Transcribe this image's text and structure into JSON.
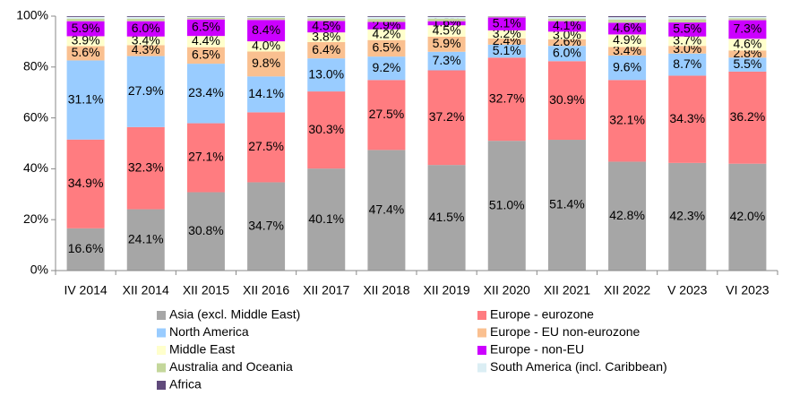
{
  "chart_data": {
    "type": "bar",
    "stacked": true,
    "categories": [
      "IV 2014",
      "XII 2014",
      "XII 2015",
      "XII 2016",
      "XII 2017",
      "XII 2018",
      "XII 2019",
      "XII 2020",
      "XII 2021",
      "XII 2022",
      "V 2023",
      "VI 2023"
    ],
    "ylim": [
      0,
      100
    ],
    "yticks": [
      {
        "value": 0,
        "label": "0%"
      },
      {
        "value": 20,
        "label": "20%"
      },
      {
        "value": 40,
        "label": "40%"
      },
      {
        "value": 60,
        "label": "60%"
      },
      {
        "value": 80,
        "label": "80%"
      },
      {
        "value": 100,
        "label": "100%"
      }
    ],
    "series": [
      {
        "name": "Asia (excl. Middle East)",
        "color": "#a6a6a6",
        "values": [
          16.6,
          24.1,
          30.8,
          34.7,
          40.1,
          47.4,
          41.5,
          51.0,
          51.4,
          42.8,
          42.3,
          42.0
        ],
        "value_labels": [
          "16.6%",
          "24.1%",
          "30.8%",
          "34.7%",
          "40.1%",
          "47.4%",
          "41.5%",
          "51.0%",
          "51.4%",
          "42.8%",
          "42.3%",
          "42.0%"
        ]
      },
      {
        "name": "Europe - eurozone",
        "color": "#ff7c80",
        "values": [
          34.9,
          32.3,
          27.1,
          27.5,
          30.3,
          27.5,
          37.2,
          32.7,
          30.9,
          32.1,
          34.3,
          36.2
        ],
        "value_labels": [
          "34.9%",
          "32.3%",
          "27.1%",
          "27.5%",
          "30.3%",
          "27.5%",
          "37.2%",
          "32.7%",
          "30.9%",
          "32.1%",
          "34.3%",
          "36.2%"
        ]
      },
      {
        "name": "North America",
        "color": "#99ccff",
        "values": [
          31.1,
          27.9,
          23.4,
          14.1,
          13.0,
          9.2,
          7.3,
          5.1,
          6.0,
          9.6,
          8.7,
          5.5
        ],
        "value_labels": [
          "31.1%",
          "27.9%",
          "23.4%",
          "14.1%",
          "13.0%",
          "9.2%",
          "7.3%",
          "5.1%",
          "6.0%",
          "9.6%",
          "8.7%",
          "5.5%"
        ]
      },
      {
        "name": "Europe - EU non-eurozone",
        "color": "#fac090",
        "values": [
          5.6,
          4.3,
          6.5,
          9.8,
          6.4,
          6.5,
          5.9,
          2.4,
          2.6,
          3.4,
          3.0,
          2.8
        ],
        "value_labels": [
          "5.6%",
          "4.3%",
          "6.5%",
          "9.8%",
          "6.4%",
          "6.5%",
          "5.9%",
          "2.4%",
          "2.6%",
          "3.4%",
          "3.0%",
          "2.8%"
        ]
      },
      {
        "name": "Middle East",
        "color": "#ffffcc",
        "values": [
          3.9,
          3.4,
          4.4,
          4.0,
          3.8,
          4.2,
          4.5,
          3.2,
          3.0,
          4.9,
          3.7,
          4.6
        ],
        "value_labels": [
          "3.9%",
          "3.4%",
          "4.4%",
          "4.0%",
          "3.8%",
          "4.2%",
          "4.5%",
          "3.2%",
          "3.0%",
          "4.9%",
          "3.7%",
          "4.6%"
        ]
      },
      {
        "name": "Europe - non-EU",
        "color": "#cc00ff",
        "values": [
          5.9,
          6.0,
          6.5,
          8.4,
          4.5,
          2.9,
          1.6,
          5.1,
          4.1,
          4.6,
          5.5,
          7.3
        ],
        "value_labels": [
          "5.9%",
          "6.0%",
          "6.5%",
          "8.4%",
          "4.5%",
          "2.9%",
          "1.6%",
          "5.1%",
          "4.1%",
          "4.6%",
          "5.5%",
          "7.3%"
        ]
      },
      {
        "name": "Australia and Oceania",
        "color": "#c4d79b",
        "values": [
          1.0,
          1.0,
          0.7,
          0.8,
          1.0,
          1.2,
          1.0,
          0.3,
          1.0,
          1.3,
          1.3,
          0.8
        ]
      },
      {
        "name": "South America (incl. Caribbean)",
        "color": "#dbeef4",
        "values": [
          0.7,
          0.7,
          0.4,
          0.5,
          0.6,
          0.8,
          0.7,
          0.1,
          0.7,
          0.9,
          0.9,
          0.6
        ]
      },
      {
        "name": "Africa",
        "color": "#604a7b",
        "values": [
          0.3,
          0.3,
          0.2,
          0.2,
          0.3,
          0.3,
          0.3,
          0.1,
          0.3,
          0.4,
          0.3,
          0.2
        ]
      }
    ]
  }
}
